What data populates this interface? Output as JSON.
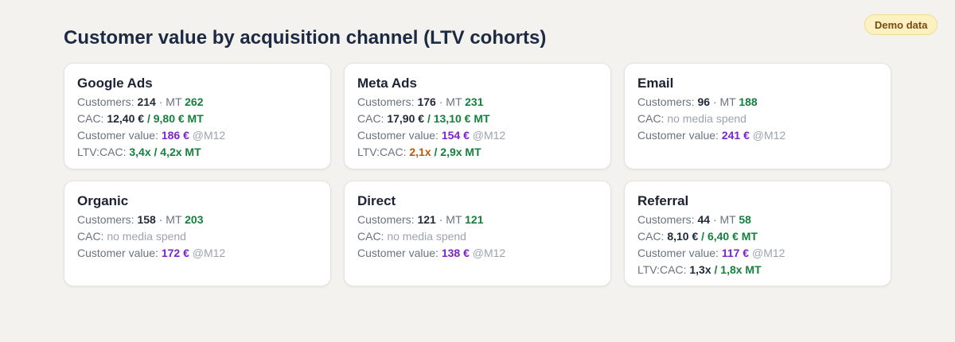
{
  "badge": "Demo data",
  "title": "Customer value by acquisition channel (LTV cohorts)",
  "labels": {
    "customers": "Customers:",
    "mt": "MT",
    "cac": "CAC:",
    "customer_value": "Customer value:",
    "m12": "@M12",
    "ltv_cac": "LTV:CAC:",
    "no_media_spend": "no media spend",
    "dot": "·",
    "slash": "/"
  },
  "cards": [
    {
      "name": "Google Ads",
      "customers": "214",
      "customers_mt": "262",
      "cac": "12,40 €",
      "cac_mt": "9,80 € MT",
      "value": "186 €",
      "ltv_cac": "3,4x",
      "ltv_cac_mt": "4,2x MT"
    },
    {
      "name": "Meta Ads",
      "customers": "176",
      "customers_mt": "231",
      "cac": "17,90 €",
      "cac_mt": "13,10 € MT",
      "value": "154 €",
      "ltv_cac": "2,1x",
      "ltv_cac_mt": "2,9x MT"
    },
    {
      "name": "Email",
      "customers": "96",
      "customers_mt": "188",
      "value": "241 €"
    },
    {
      "name": "Organic",
      "customers": "158",
      "customers_mt": "203",
      "value": "172 €"
    },
    {
      "name": "Direct",
      "customers": "121",
      "customers_mt": "121",
      "value": "138 €"
    },
    {
      "name": "Referral",
      "customers": "44",
      "customers_mt": "58",
      "cac": "8,10 €",
      "cac_mt": "6,40 € MT",
      "value": "117 €",
      "ltv_cac": "1,3x",
      "ltv_cac_mt": "1,8x MT"
    }
  ],
  "colors": {
    "background": "#f4f2ee",
    "title": "#1c2a44",
    "good_green": "#15803d",
    "value_purple": "#7e22ce",
    "warning_orange": "#c2570c",
    "badge_bg": "#fdf1c3",
    "badge_text": "#7a4a10"
  }
}
